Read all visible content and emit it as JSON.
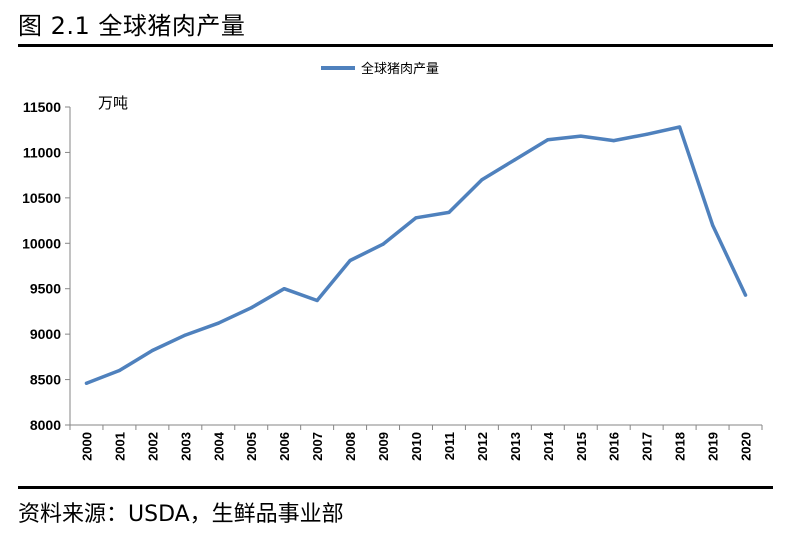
{
  "figure": {
    "title": "图 2.1  全球猪肉产量",
    "source": "资料来源：USDA，生鲜品事业部"
  },
  "chart_data": {
    "type": "line",
    "unit_label": "万吨",
    "ylim": [
      8000,
      11500
    ],
    "y_ticks": [
      8000,
      8500,
      9000,
      9500,
      10000,
      10500,
      11000,
      11500
    ],
    "grid": false,
    "legend_position": "top-center",
    "x": [
      "2000",
      "2001",
      "2002",
      "2003",
      "2004",
      "2005",
      "2006",
      "2007",
      "2008",
      "2009",
      "2010",
      "2011",
      "2012",
      "2013",
      "2014",
      "2015",
      "2016",
      "2017",
      "2018",
      "2019",
      "2020"
    ],
    "series": [
      {
        "name": "全球猪肉产量",
        "color": "#4f81bd",
        "values": [
          8460,
          8600,
          8820,
          8990,
          9120,
          9290,
          9500,
          9370,
          9810,
          9990,
          10280,
          10340,
          10700,
          10920,
          11140,
          11180,
          11130,
          11200,
          11280,
          10200,
          9430
        ]
      }
    ]
  }
}
